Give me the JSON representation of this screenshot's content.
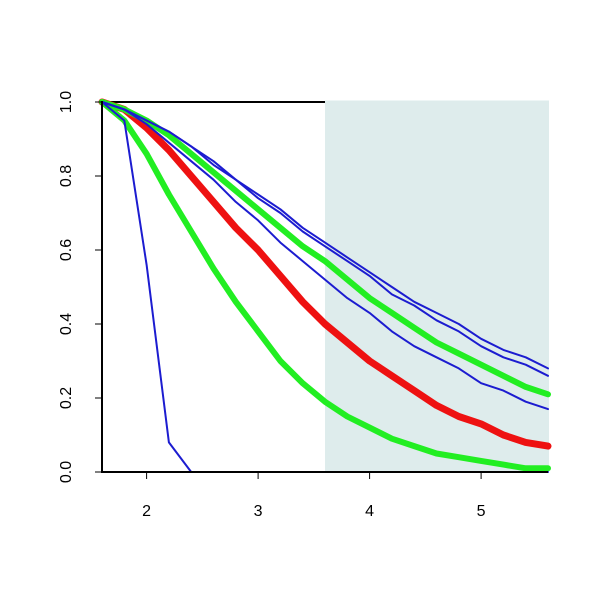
{
  "chart_data": {
    "type": "line",
    "x": [
      1.6,
      1.8,
      2.0,
      2.2,
      2.4,
      2.6,
      2.8,
      3.0,
      3.2,
      3.4,
      3.6,
      3.8,
      4.0,
      4.2,
      4.4,
      4.6,
      4.8,
      5.0,
      5.2,
      5.4,
      5.6
    ],
    "series": [
      {
        "color": "#1c1cd0",
        "line_width": 2,
        "values": [
          1,
          0.95,
          0.56,
          0.08,
          0,
          0,
          0,
          0,
          0,
          0,
          0,
          0,
          0,
          0,
          0,
          0,
          0,
          0,
          0,
          0,
          0
        ]
      },
      {
        "color": "#1c1cd0",
        "line_width": 2,
        "values": [
          1,
          0.98,
          0.95,
          0.92,
          0.88,
          0.84,
          0.79,
          0.75,
          0.71,
          0.66,
          0.62,
          0.58,
          0.54,
          0.5,
          0.46,
          0.43,
          0.4,
          0.36,
          0.33,
          0.31,
          0.28
        ]
      },
      {
        "color": "#1c1cd0",
        "line_width": 2,
        "values": [
          1,
          0.98,
          0.95,
          0.92,
          0.88,
          0.83,
          0.79,
          0.74,
          0.7,
          0.65,
          0.61,
          0.57,
          0.53,
          0.48,
          0.45,
          0.41,
          0.38,
          0.34,
          0.31,
          0.29,
          0.26
        ]
      },
      {
        "color": "#1c1cd0",
        "line_width": 2,
        "values": [
          1,
          0.98,
          0.94,
          0.89,
          0.84,
          0.79,
          0.73,
          0.68,
          0.62,
          0.57,
          0.52,
          0.47,
          0.43,
          0.38,
          0.34,
          0.31,
          0.28,
          0.24,
          0.22,
          0.19,
          0.17
        ]
      },
      {
        "color": "#22ee22",
        "line_width": 6,
        "values": [
          1,
          0.98,
          0.95,
          0.91,
          0.86,
          0.81,
          0.76,
          0.71,
          0.66,
          0.61,
          0.57,
          0.52,
          0.47,
          0.43,
          0.39,
          0.35,
          0.32,
          0.29,
          0.26,
          0.23,
          0.21
        ]
      },
      {
        "color": "#ee1111",
        "line_width": 7,
        "values": [
          1,
          0.98,
          0.93,
          0.87,
          0.8,
          0.73,
          0.66,
          0.6,
          0.53,
          0.46,
          0.4,
          0.35,
          0.3,
          0.26,
          0.22,
          0.18,
          0.15,
          0.13,
          0.1,
          0.08,
          0.07
        ]
      },
      {
        "color": "#22ee22",
        "line_width": 6,
        "values": [
          1,
          0.95,
          0.86,
          0.75,
          0.65,
          0.55,
          0.46,
          0.38,
          0.3,
          0.24,
          0.19,
          0.15,
          0.12,
          0.09,
          0.07,
          0.05,
          0.04,
          0.03,
          0.02,
          0.01,
          0.01
        ]
      }
    ],
    "shade_x": [
      3.6,
      5.6
    ],
    "shade_color": "#deecec",
    "xlim": [
      1.6,
      5.6
    ],
    "xticks": [
      2,
      3,
      4,
      5
    ],
    "ylim": [
      0,
      1
    ],
    "yticks": [
      {
        "value": 0,
        "label": "0.0"
      },
      {
        "value": 0.2,
        "label": "0.2"
      },
      {
        "value": 0.4,
        "label": "0.4"
      },
      {
        "value": 0.6,
        "label": "0.6"
      },
      {
        "value": 0.8,
        "label": "0.8"
      },
      {
        "value": 1,
        "label": "1.0"
      }
    ]
  }
}
